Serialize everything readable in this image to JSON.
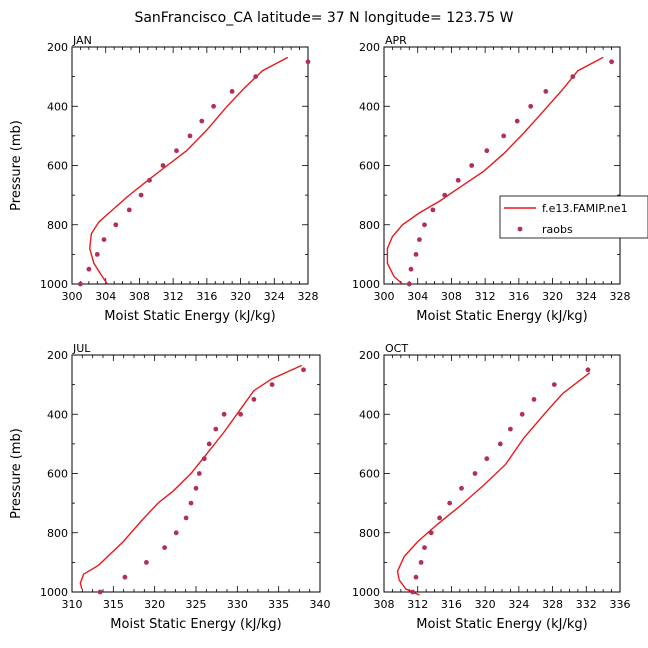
{
  "title": "SanFrancisco_CA  latitude= 37 N longitude= 123.75 W",
  "legend": {
    "model_label": "f.e13.FAMIP.ne1",
    "obs_label": "raobs"
  },
  "colors": {
    "model": "#e8191c",
    "obs": "#b0305a"
  },
  "chart_data": [
    {
      "type": "line",
      "panel": "JAN",
      "xlabel": "Moist Static Energy (kJ/kg)",
      "ylabel": "Pressure (mb)",
      "xlim": [
        300,
        328
      ],
      "ylim": [
        1000,
        200
      ],
      "xticks": [
        300,
        304,
        308,
        312,
        316,
        320,
        324,
        328
      ],
      "yticks": [
        200,
        400,
        600,
        800,
        1000
      ],
      "series": [
        {
          "name": "f.e13.FAMIP.ne1",
          "kind": "line",
          "x": [
            304.2,
            303.6,
            302.6,
            302.1,
            302.3,
            303.2,
            304.8,
            306.8,
            309.0,
            311.3,
            313.6,
            316.0,
            318.4,
            320.4,
            322.6,
            325.6
          ],
          "y": [
            1000,
            975,
            930,
            880,
            830,
            790,
            750,
            700,
            650,
            600,
            550,
            480,
            400,
            340,
            280,
            235
          ]
        },
        {
          "name": "raobs",
          "kind": "scatter",
          "x": [
            301.0,
            302.0,
            303.0,
            303.8,
            305.2,
            306.8,
            308.2,
            309.2,
            310.8,
            312.4,
            314.0,
            315.4,
            316.8,
            319.0,
            321.8,
            328.0
          ],
          "y": [
            1000,
            950,
            900,
            850,
            800,
            750,
            700,
            650,
            600,
            550,
            500,
            450,
            400,
            350,
            300,
            250
          ]
        }
      ]
    },
    {
      "type": "line",
      "panel": "APR",
      "xlabel": "Moist Static Energy (kJ/kg)",
      "ylabel": "",
      "xlim": [
        300,
        328
      ],
      "ylim": [
        1000,
        200
      ],
      "xticks": [
        300,
        304,
        308,
        312,
        316,
        320,
        324,
        328
      ],
      "yticks": [
        200,
        400,
        600,
        800,
        1000
      ],
      "series": [
        {
          "name": "f.e13.FAMIP.ne1",
          "kind": "line",
          "x": [
            302.2,
            301.2,
            300.4,
            300.4,
            301.0,
            302.2,
            304.2,
            306.6,
            309.2,
            311.8,
            314.2,
            316.6,
            318.8,
            321.0,
            323.0,
            326.0
          ],
          "y": [
            1000,
            975,
            930,
            880,
            840,
            800,
            760,
            720,
            670,
            620,
            560,
            490,
            420,
            350,
            280,
            235
          ]
        },
        {
          "name": "raobs",
          "kind": "scatter",
          "x": [
            303.0,
            303.2,
            303.8,
            304.2,
            304.8,
            305.8,
            307.2,
            308.8,
            310.4,
            312.2,
            314.2,
            315.8,
            317.4,
            319.2,
            322.4,
            327.0
          ],
          "y": [
            1000,
            950,
            900,
            850,
            800,
            750,
            700,
            650,
            600,
            550,
            500,
            450,
            400,
            350,
            300,
            250
          ]
        }
      ]
    },
    {
      "type": "line",
      "panel": "JUL",
      "xlabel": "Moist Static Energy (kJ/kg)",
      "ylabel": "Pressure (mb)",
      "xlim": [
        310,
        340
      ],
      "ylim": [
        1000,
        200
      ],
      "xticks": [
        310,
        315,
        320,
        325,
        330,
        335,
        340
      ],
      "yticks": [
        200,
        400,
        600,
        800,
        1000
      ],
      "series": [
        {
          "name": "f.e13.FAMIP.ne1",
          "kind": "line",
          "x": [
            311.2,
            311.0,
            311.4,
            313.2,
            316.2,
            318.4,
            320.4,
            322.2,
            324.4,
            326.4,
            328.4,
            330.2,
            332.0,
            334.2,
            337.8
          ],
          "y": [
            990,
            970,
            940,
            910,
            830,
            760,
            700,
            660,
            600,
            530,
            460,
            390,
            320,
            280,
            235
          ]
        },
        {
          "name": "raobs",
          "kind": "scatter",
          "x": [
            313.4,
            316.4,
            319.0,
            321.2,
            322.6,
            323.8,
            324.4,
            325.0,
            325.4,
            326.0,
            326.6,
            327.4,
            328.4,
            330.4,
            332.0,
            334.2,
            338.0
          ],
          "y": [
            1000,
            950,
            900,
            850,
            800,
            750,
            700,
            650,
            600,
            550,
            500,
            450,
            400,
            400,
            350,
            300,
            250
          ]
        }
      ]
    },
    {
      "type": "line",
      "panel": "OCT",
      "xlabel": "Moist Static Energy (kJ/kg)",
      "ylabel": "",
      "xlim": [
        308,
        336
      ],
      "ylim": [
        1000,
        200
      ],
      "xticks": [
        308,
        312,
        316,
        320,
        324,
        328,
        332,
        336
      ],
      "yticks": [
        200,
        400,
        600,
        800,
        1000
      ],
      "series": [
        {
          "name": "f.e13.FAMIP.ne1",
          "kind": "line",
          "x": [
            312.2,
            310.6,
            309.8,
            309.6,
            310.4,
            312.0,
            314.4,
            317.0,
            319.8,
            322.4,
            324.6,
            327.0,
            329.2,
            332.4
          ],
          "y": [
            1010,
            990,
            960,
            930,
            880,
            830,
            770,
            710,
            640,
            570,
            480,
            400,
            330,
            260
          ]
        },
        {
          "name": "raobs",
          "kind": "scatter",
          "x": [
            311.4,
            311.8,
            312.4,
            312.8,
            313.6,
            314.6,
            315.8,
            317.2,
            318.8,
            320.2,
            321.8,
            323.0,
            324.4,
            325.8,
            328.2,
            332.2
          ],
          "y": [
            1000,
            950,
            900,
            850,
            800,
            750,
            700,
            650,
            600,
            550,
            500,
            450,
            400,
            350,
            300,
            250
          ]
        }
      ]
    }
  ]
}
